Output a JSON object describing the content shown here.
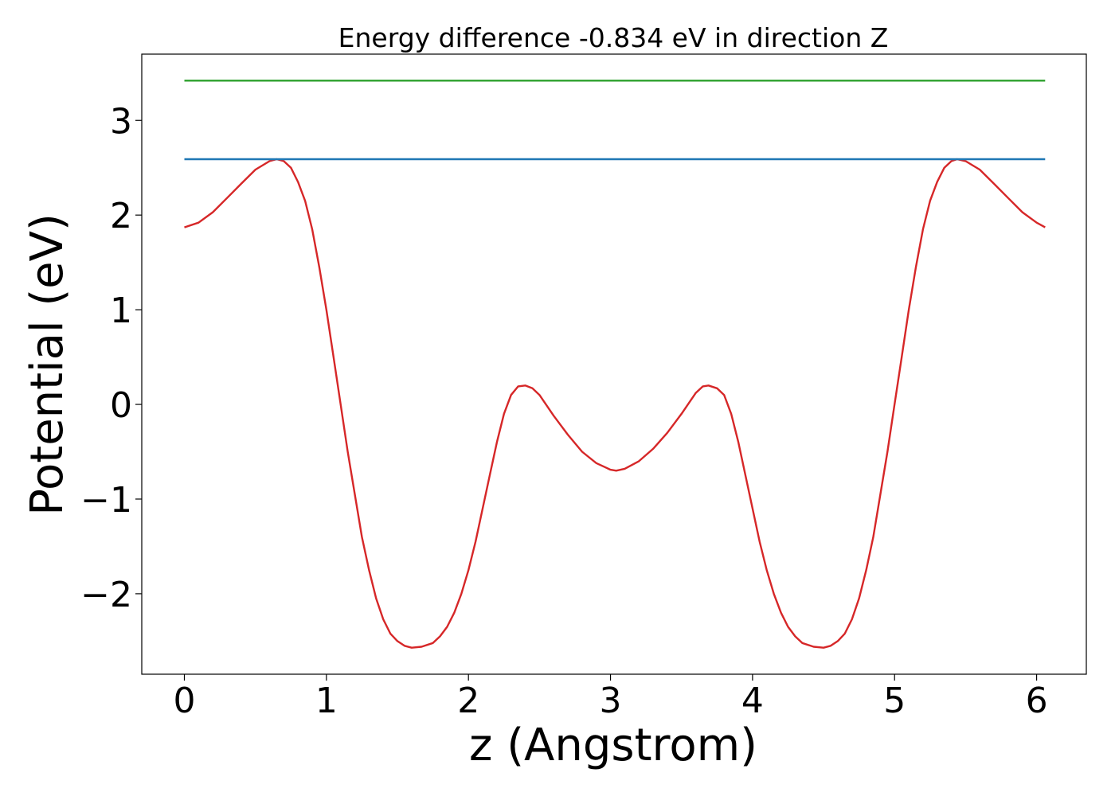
{
  "chart_data": {
    "type": "line",
    "title": "Energy difference -0.834 eV in direction Z",
    "xlabel": "z (Angstrom)",
    "ylabel": "Potential (eV)",
    "xlim": [
      -0.3,
      6.35
    ],
    "ylim": [
      -2.85,
      3.7
    ],
    "xticks": [
      0,
      1,
      2,
      3,
      4,
      5,
      6
    ],
    "xtick_labels": [
      "0",
      "1",
      "2",
      "3",
      "4",
      "5",
      "6"
    ],
    "yticks": [
      -2,
      -1,
      0,
      1,
      2,
      3
    ],
    "ytick_labels": [
      "−2",
      "−1",
      "0",
      "1",
      "2",
      "3"
    ],
    "grid": false,
    "series": [
      {
        "color": "#d62728",
        "x": [
          0.0,
          0.1,
          0.2,
          0.3,
          0.4,
          0.5,
          0.6,
          0.65,
          0.7,
          0.75,
          0.8,
          0.85,
          0.9,
          0.95,
          1.0,
          1.05,
          1.1,
          1.15,
          1.2,
          1.25,
          1.3,
          1.35,
          1.4,
          1.45,
          1.5,
          1.55,
          1.6,
          1.67,
          1.75,
          1.8,
          1.85,
          1.9,
          1.95,
          2.0,
          2.05,
          2.1,
          2.15,
          2.2,
          2.25,
          2.3,
          2.35,
          2.4,
          2.45,
          2.5,
          2.6,
          2.7,
          2.8,
          2.9,
          3.0,
          3.04,
          3.1,
          3.2,
          3.3,
          3.4,
          3.5,
          3.6,
          3.65,
          3.69,
          3.75,
          3.8,
          3.85,
          3.9,
          3.95,
          4.0,
          4.05,
          4.1,
          4.15,
          4.2,
          4.25,
          4.3,
          4.35,
          4.43,
          4.5,
          4.55,
          4.6,
          4.65,
          4.7,
          4.75,
          4.8,
          4.85,
          4.9,
          4.95,
          5.0,
          5.05,
          5.1,
          5.15,
          5.2,
          5.25,
          5.3,
          5.35,
          5.4,
          5.44,
          5.5,
          5.6,
          5.7,
          5.8,
          5.9,
          6.0,
          6.06
        ],
        "y": [
          1.87,
          1.92,
          2.03,
          2.18,
          2.33,
          2.48,
          2.57,
          2.59,
          2.57,
          2.5,
          2.35,
          2.15,
          1.85,
          1.45,
          1.0,
          0.5,
          0.0,
          -0.5,
          -0.95,
          -1.4,
          -1.75,
          -2.05,
          -2.27,
          -2.42,
          -2.5,
          -2.55,
          -2.57,
          -2.56,
          -2.52,
          -2.45,
          -2.35,
          -2.2,
          -2.0,
          -1.75,
          -1.45,
          -1.1,
          -0.75,
          -0.4,
          -0.1,
          0.1,
          0.19,
          0.2,
          0.17,
          0.1,
          -0.12,
          -0.32,
          -0.5,
          -0.62,
          -0.69,
          -0.7,
          -0.68,
          -0.6,
          -0.47,
          -0.3,
          -0.1,
          0.12,
          0.19,
          0.2,
          0.17,
          0.1,
          -0.1,
          -0.4,
          -0.75,
          -1.1,
          -1.45,
          -1.75,
          -2.0,
          -2.2,
          -2.35,
          -2.45,
          -2.52,
          -2.56,
          -2.57,
          -2.55,
          -2.5,
          -2.42,
          -2.27,
          -2.05,
          -1.75,
          -1.4,
          -0.95,
          -0.5,
          0.0,
          0.5,
          1.0,
          1.45,
          1.85,
          2.15,
          2.35,
          2.5,
          2.57,
          2.59,
          2.57,
          2.48,
          2.33,
          2.18,
          2.03,
          1.92,
          1.87
        ]
      },
      {
        "color": "#1f77b4",
        "x": [
          0.0,
          6.06
        ],
        "y": [
          2.59,
          2.59
        ]
      },
      {
        "color": "#2ca02c",
        "x": [
          0.0,
          6.06
        ],
        "y": [
          3.42,
          3.42
        ]
      }
    ]
  }
}
